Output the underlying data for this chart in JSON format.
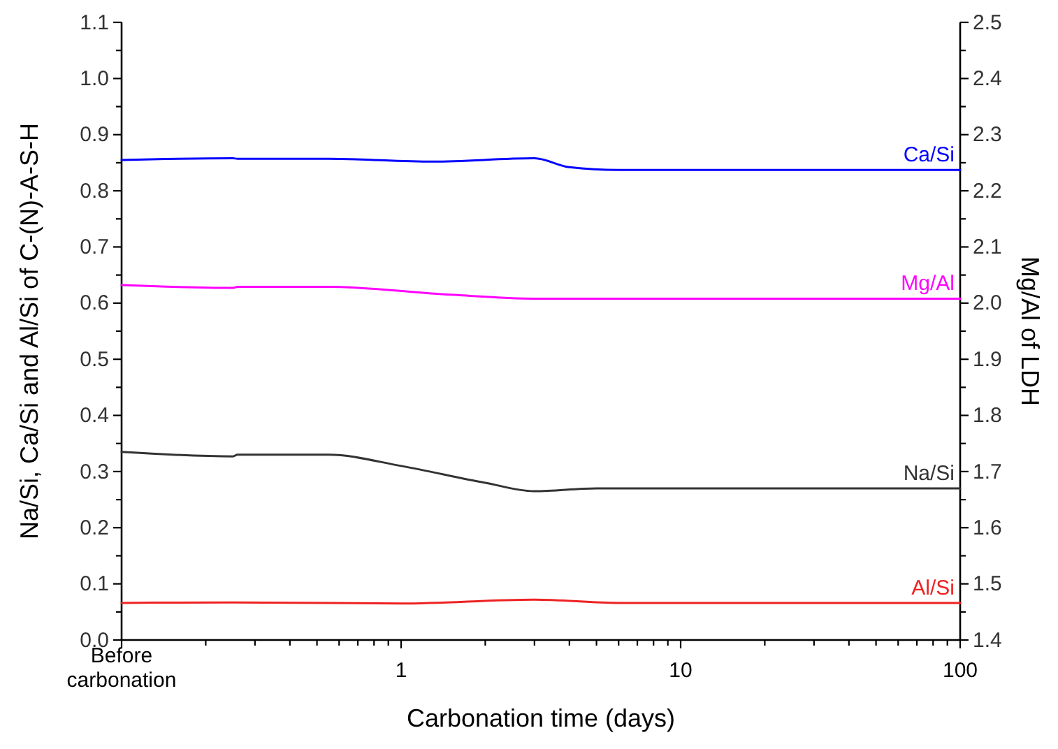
{
  "chart_data": {
    "type": "line",
    "xlabel": "Carbonation time (days)",
    "ylabel": "Na/Si, Ca/Si and Al/Si of C-(N)-A-S-H",
    "y2label": "Mg/Al of LDH",
    "log": "x",
    "xlim": [
      0.1,
      100
    ],
    "xticks": [
      {
        "value": 0.1,
        "label": "Before carbonation"
      },
      {
        "value": 0.2,
        "label": null
      },
      {
        "value": 0.3,
        "label": null
      },
      {
        "value": 0.4,
        "label": null
      },
      {
        "value": 0.5,
        "label": null
      },
      {
        "value": 0.6,
        "label": null
      },
      {
        "value": 0.7,
        "label": null
      },
      {
        "value": 0.8,
        "label": null
      },
      {
        "value": 0.9,
        "label": null
      },
      1,
      {
        "value": 2,
        "label": null
      },
      {
        "value": 3,
        "label": null
      },
      {
        "value": 4,
        "label": null
      },
      {
        "value": 5,
        "label": null
      },
      {
        "value": 6,
        "label": null
      },
      {
        "value": 7,
        "label": null
      },
      {
        "value": 8,
        "label": null
      },
      {
        "value": 9,
        "label": null
      },
      10,
      {
        "value": 20,
        "label": null
      },
      {
        "value": 30,
        "label": null
      },
      {
        "value": 40,
        "label": null
      },
      {
        "value": 50,
        "label": null
      },
      {
        "value": 60,
        "label": null
      },
      {
        "value": 70,
        "label": null
      },
      {
        "value": 80,
        "label": null
      },
      {
        "value": 90,
        "label": null
      },
      100
    ],
    "ylim": [
      0,
      1.1
    ],
    "yticks": [
      {
        "value": 0,
        "label": "0.0"
      },
      {
        "value": 0.05,
        "label": null
      },
      0.1,
      {
        "value": 0.15,
        "label": null
      },
      0.2,
      {
        "value": 0.25,
        "label": null
      },
      0.3,
      {
        "value": 0.35,
        "label": null
      },
      0.4,
      {
        "value": 0.45,
        "label": null
      },
      0.5,
      {
        "value": 0.55,
        "label": null
      },
      0.6,
      {
        "value": 0.65,
        "label": null
      },
      0.7,
      {
        "value": 0.75,
        "label": null
      },
      0.8,
      {
        "value": 0.85,
        "label": null
      },
      0.9,
      {
        "value": 0.95,
        "label": null
      },
      {
        "value": 1,
        "label": "1.0"
      },
      {
        "value": 1.05,
        "label": null
      },
      1.1
    ],
    "y2lim": [
      1.4,
      2.5
    ],
    "y2ticks": [
      1.4,
      {
        "value": 1.45,
        "label": null
      },
      1.5,
      {
        "value": 1.55,
        "label": null
      },
      1.6,
      {
        "value": 1.65,
        "label": null
      },
      1.7,
      {
        "value": 1.75,
        "label": null
      },
      1.8,
      {
        "value": 1.85,
        "label": null
      },
      1.9,
      {
        "value": 1.95,
        "label": null
      },
      {
        "value": 2,
        "label": "2.0"
      },
      {
        "value": 2.05,
        "label": null
      },
      2.1,
      {
        "value": 2.15,
        "label": null
      },
      2.2,
      {
        "value": 2.25,
        "label": null
      },
      2.3,
      {
        "value": 2.35,
        "label": null
      },
      2.4,
      {
        "value": 2.45,
        "label": null
      },
      2.5
    ],
    "grid": false,
    "legend": false,
    "marker": "none",
    "line_style": "solid",
    "series": [
      {
        "name": "Ca/Si",
        "color": "#0000ff",
        "x": [
          0.1,
          0.25,
          0.26,
          0.55,
          1.3,
          3,
          4,
          6,
          100
        ],
        "values": [
          0.855,
          0.858,
          0.857,
          0.857,
          0.852,
          0.858,
          0.842,
          0.837,
          0.837
        ]
      },
      {
        "name": "Mg/Al",
        "color": "#ff00ff",
        "axis": "y2",
        "x": [
          0.1,
          0.25,
          0.26,
          0.55,
          1.5,
          3,
          100
        ],
        "values": [
          2.032,
          2.027,
          2.029,
          2.029,
          2.015,
          2.008,
          2.008
        ]
      },
      {
        "name": "Na/Si",
        "color": "#333333",
        "x": [
          0.1,
          0.25,
          0.26,
          0.55,
          1,
          2,
          3,
          5,
          100
        ],
        "values": [
          0.335,
          0.327,
          0.33,
          0.33,
          0.31,
          0.28,
          0.265,
          0.27,
          0.27
        ]
      },
      {
        "name": "Al/Si",
        "color": "#ee2222",
        "x": [
          0.1,
          0.25,
          0.55,
          1,
          3,
          6,
          100
        ],
        "values": [
          0.066,
          0.067,
          0.066,
          0.065,
          0.072,
          0.066,
          0.066
        ]
      }
    ]
  }
}
